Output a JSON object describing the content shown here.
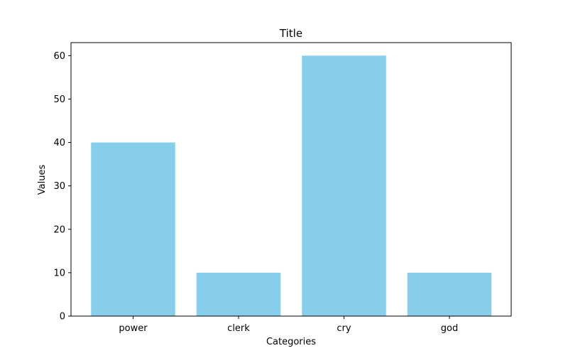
{
  "chart_data": {
    "type": "bar",
    "title": "Title",
    "xlabel": "Categories",
    "ylabel": "Values",
    "categories": [
      "power",
      "clerk",
      "cry",
      "god"
    ],
    "values": [
      40,
      10,
      60,
      10
    ],
    "ylim": [
      0,
      63
    ],
    "yticks": [
      0,
      10,
      20,
      30,
      40,
      50,
      60
    ],
    "grid": false,
    "bar_color": "#87ceeb"
  }
}
